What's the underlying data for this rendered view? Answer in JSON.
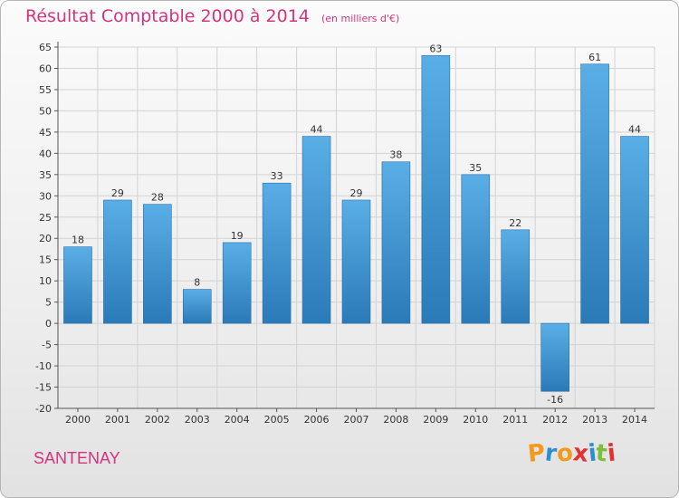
{
  "chart_data": {
    "type": "bar",
    "title": "Résultat Comptable 2000 à 2014",
    "subtitle": "(en milliers d'€)",
    "categories": [
      "2000",
      "2001",
      "2002",
      "2003",
      "2004",
      "2005",
      "2006",
      "2007",
      "2008",
      "2009",
      "2010",
      "2011",
      "2012",
      "2013",
      "2014"
    ],
    "values": [
      18,
      29,
      28,
      8,
      19,
      33,
      44,
      29,
      38,
      63,
      35,
      22,
      -16,
      61,
      44
    ],
    "ylim": [
      -20,
      65
    ],
    "ytick_step": 5,
    "xlabel": "",
    "ylabel": "",
    "grid": true,
    "bar_color_light": "#5aaee6",
    "bar_color_dark": "#2a7ab8"
  },
  "footer": {
    "town": "SANTENAY",
    "logo_letters": [
      {
        "ch": "P",
        "color": "#f39a1e"
      },
      {
        "ch": "r",
        "color": "#2e8fd0"
      },
      {
        "ch": "o",
        "color": "#f39a1e"
      },
      {
        "ch": "x",
        "color": "#e0322f"
      },
      {
        "ch": "i",
        "color": "#2e8fd0"
      },
      {
        "ch": "t",
        "color": "#7bbf3a"
      },
      {
        "ch": "i",
        "color": "#e0322f"
      }
    ]
  }
}
